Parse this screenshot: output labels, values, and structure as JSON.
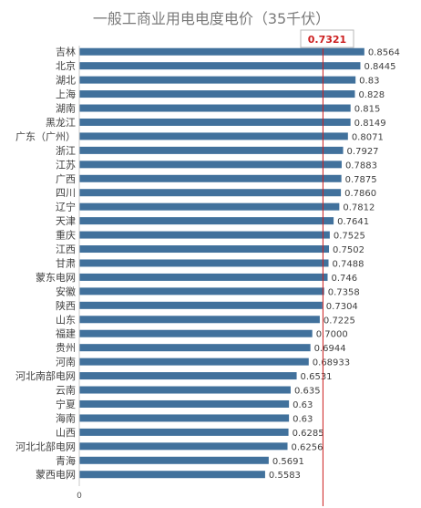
{
  "chart_data": {
    "type": "bar",
    "orientation": "horizontal",
    "title": "一般工商业用电电度电价（35千伏）",
    "categories": [
      "吉林",
      "北京",
      "湖北",
      "上海",
      "湖南",
      "黑龙江",
      "广东（广州）",
      "浙江",
      "江苏",
      "广西",
      "四川",
      "辽宁",
      "天津",
      "重庆",
      "江西",
      "甘肃",
      "蒙东电网",
      "安徽",
      "陕西",
      "山东",
      "福建",
      "贵州",
      "河南",
      "河北南部电网",
      "云南",
      "宁夏",
      "海南",
      "山西",
      "河北北部电网",
      "青海",
      "蒙西电网"
    ],
    "value_labels": [
      "0.8564",
      "0.8445",
      "0.83",
      "0.828",
      "0.815",
      "0.8149",
      "0.8071",
      "0.7927",
      "0.7883",
      "0.7875",
      "0.7860",
      "0.7812",
      "0.7641",
      "0.7525",
      "0.7502",
      "0.7488",
      "0.746",
      "0.7358",
      "0.7304",
      "0.7225",
      "0.7000",
      "0.6944",
      "0.68933",
      "0.6531",
      "0.635",
      "0.63",
      "0.63",
      "0.6285",
      "0.6256",
      "0.5691",
      "0.5583"
    ],
    "values": [
      0.8564,
      0.8445,
      0.83,
      0.828,
      0.815,
      0.8149,
      0.8071,
      0.7927,
      0.7883,
      0.7875,
      0.786,
      0.7812,
      0.7641,
      0.7525,
      0.7502,
      0.7488,
      0.746,
      0.7358,
      0.7304,
      0.7225,
      0.7,
      0.6944,
      0.68933,
      0.6531,
      0.635,
      0.63,
      0.63,
      0.6285,
      0.6256,
      0.5691,
      0.5583
    ],
    "x_tick_label": "0",
    "xlim": [
      0,
      0.887
    ],
    "reference_line": {
      "label": "0.7321",
      "value": 0.7321,
      "color": "#cc1f1f"
    },
    "bar_color": "#41719c",
    "grid": false,
    "legend": "none"
  }
}
